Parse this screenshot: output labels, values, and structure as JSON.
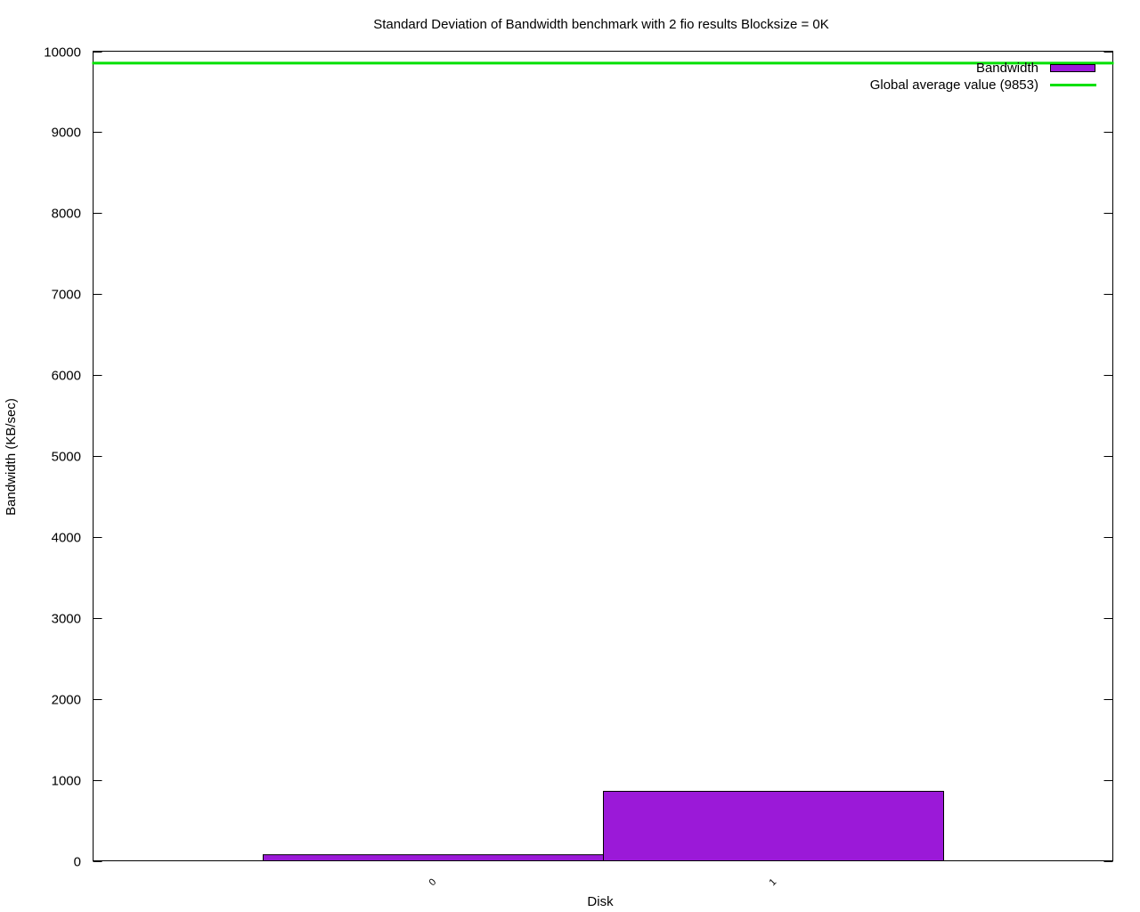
{
  "chart_data": {
    "type": "bar",
    "title": "Standard Deviation of Bandwidth benchmark with 2 fio results  Blocksize = 0K",
    "xlabel": "Disk",
    "ylabel": "Bandwidth (KB/sec)",
    "categories": [
      "0",
      "1"
    ],
    "series": [
      {
        "name": "Bandwidth",
        "values": [
          75,
          858
        ],
        "color": "#9b19d8"
      }
    ],
    "reference_line": {
      "name": "Global average value (9853)",
      "value": 9853,
      "color": "#00e000"
    },
    "ylim": [
      0,
      10000
    ],
    "yticks": [
      0,
      1000,
      2000,
      3000,
      4000,
      5000,
      6000,
      7000,
      8000,
      9000,
      10000
    ],
    "grid": false,
    "legend_position": "top-right"
  }
}
